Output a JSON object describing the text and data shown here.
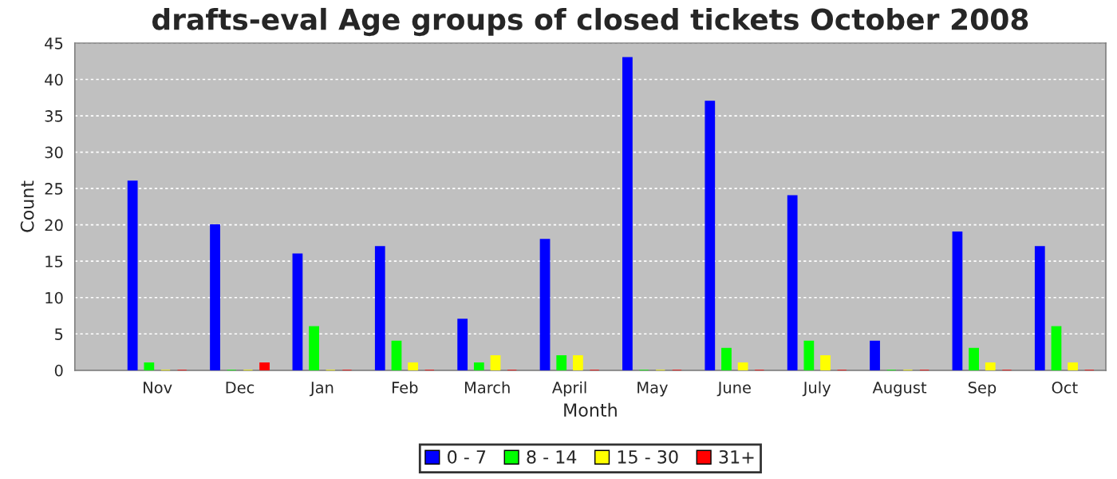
{
  "chart_data": {
    "type": "bar",
    "title": "drafts-eval Age groups of closed tickets October 2008",
    "xlabel": "Month",
    "ylabel": "Count",
    "categories": [
      "Nov",
      "Dec",
      "Jan",
      "Feb",
      "March",
      "April",
      "May",
      "June",
      "July",
      "August",
      "Sep",
      "Oct"
    ],
    "series": [
      {
        "name": "0 - 7",
        "color": "#0000ff",
        "values": [
          26,
          20,
          16,
          17,
          7,
          18,
          43,
          37,
          24,
          4,
          19,
          17
        ]
      },
      {
        "name": "8 - 14",
        "color": "#00ff00",
        "values": [
          1,
          0,
          6,
          4,
          1,
          2,
          0,
          3,
          4,
          0,
          3,
          6
        ]
      },
      {
        "name": "15 - 30",
        "color": "#ffff00",
        "values": [
          0,
          0,
          0,
          1,
          2,
          2,
          0,
          1,
          2,
          0,
          1,
          1
        ]
      },
      {
        "name": "31+",
        "color": "#ff0000",
        "values": [
          0,
          1,
          0,
          0,
          0,
          0,
          0,
          0,
          0,
          0,
          0,
          0
        ]
      }
    ],
    "ylim": [
      0,
      45
    ],
    "yticks": [
      0,
      5,
      10,
      15,
      20,
      25,
      30,
      35,
      40,
      45
    ],
    "grid": "y",
    "legend": "bottom"
  }
}
